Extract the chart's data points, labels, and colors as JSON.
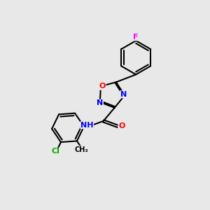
{
  "background_color": "#e8e8e8",
  "bond_color": "#000000",
  "bond_width": 1.5,
  "atom_colors": {
    "N": "#0000ff",
    "O": "#ff0000",
    "F": "#ff00ff",
    "Cl": "#00aa00",
    "C": "#000000",
    "H": "#000000"
  },
  "font_size": 8.0,
  "figsize": [
    3.0,
    3.0
  ],
  "dpi": 100
}
